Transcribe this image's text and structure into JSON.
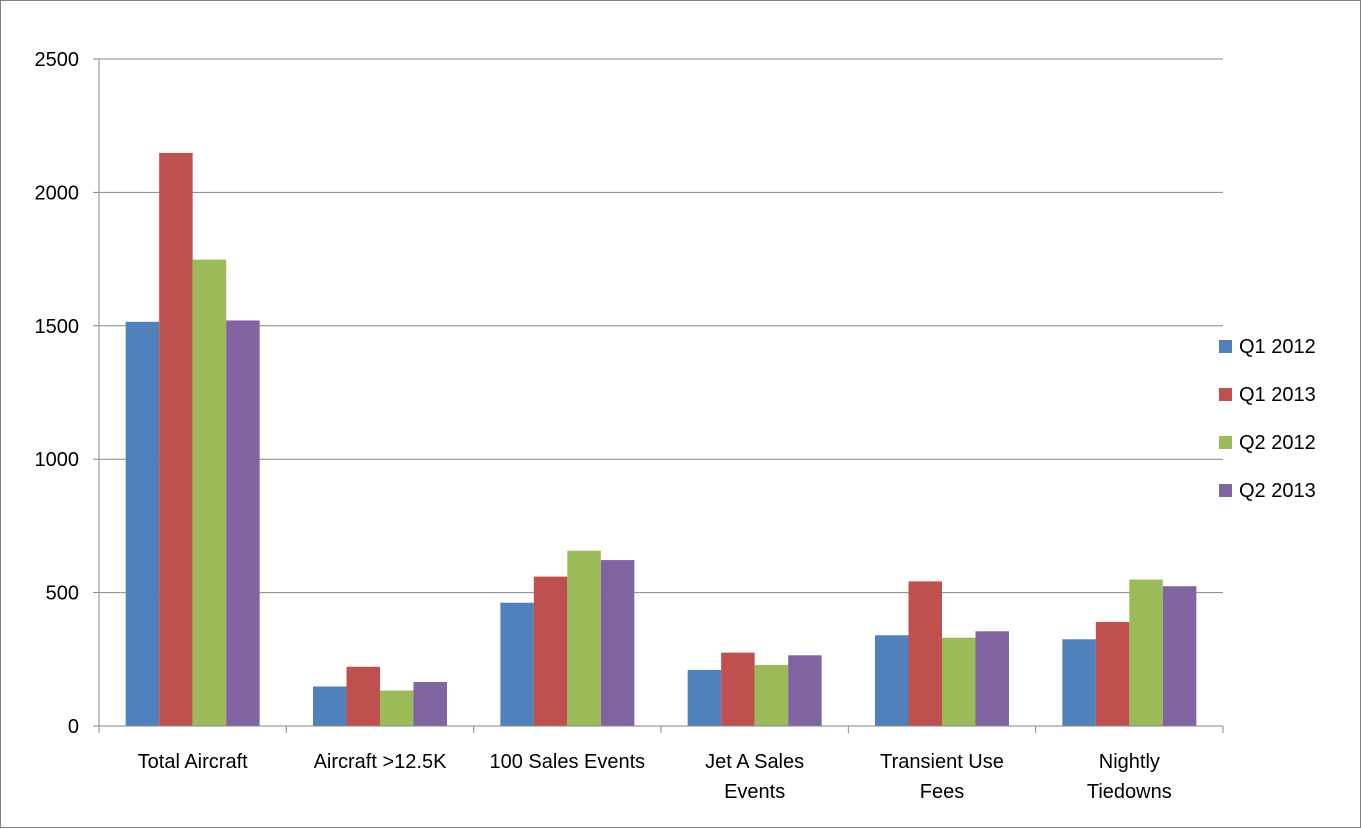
{
  "chart_data": {
    "type": "bar",
    "title": "",
    "xlabel": "",
    "ylabel": "",
    "ylim": [
      0,
      2500
    ],
    "y_ticks": [
      0,
      500,
      1000,
      1500,
      2000,
      2500
    ],
    "grid": true,
    "legend_position": "right",
    "categories": [
      [
        "Total Aircraft"
      ],
      [
        "Aircraft >12.5K"
      ],
      [
        "100 Sales Events"
      ],
      [
        "Jet A Sales",
        "Events"
      ],
      [
        "Transient Use",
        "Fees"
      ],
      [
        "Nightly",
        "Tiedowns"
      ]
    ],
    "series": [
      {
        "name": "Q1 2012",
        "color": "#4f81bd",
        "values": [
          1515,
          148,
          462,
          210,
          340,
          325
        ]
      },
      {
        "name": "Q1 2013",
        "color": "#c0504d",
        "values": [
          2148,
          222,
          560,
          275,
          542,
          390
        ]
      },
      {
        "name": "Q2 2012",
        "color": "#9bbb59",
        "values": [
          1748,
          133,
          657,
          229,
          331,
          549
        ]
      },
      {
        "name": "Q2 2013",
        "color": "#8064a2",
        "values": [
          1520,
          165,
          622,
          265,
          355,
          524
        ]
      }
    ]
  }
}
